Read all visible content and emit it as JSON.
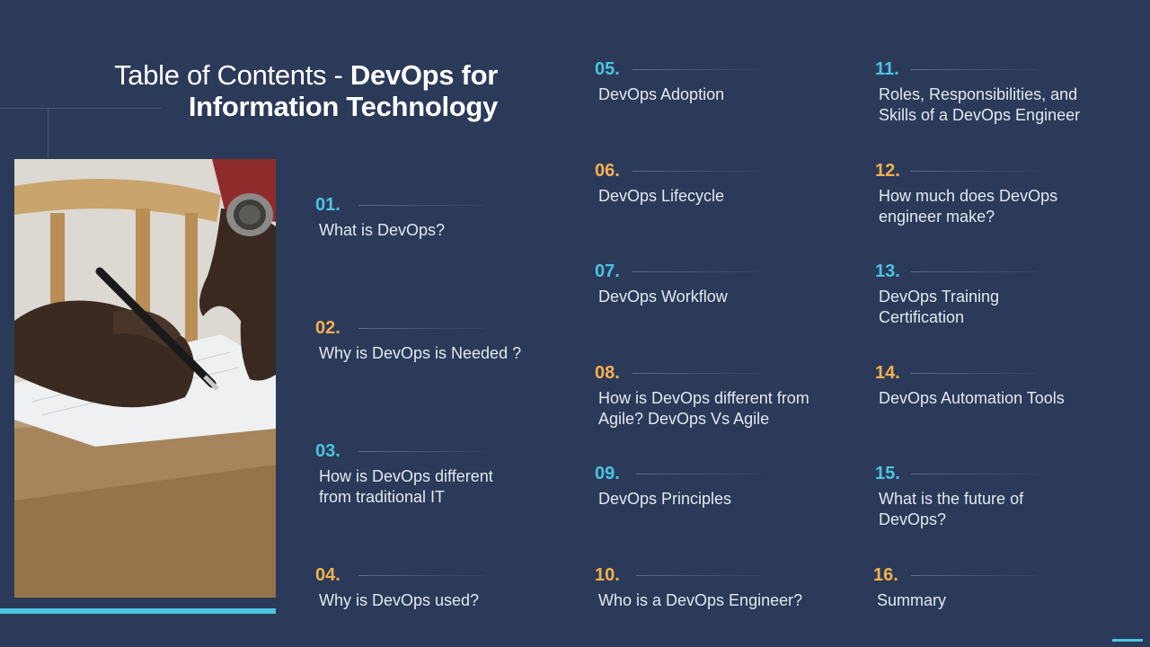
{
  "title": {
    "light": "Table of Contents - ",
    "bold_1": "DevOps for",
    "bold_2": "Information Technology"
  },
  "photo": {
    "icon": "hand-writing-photo"
  },
  "colors": {
    "background": "#2b3a58",
    "accent_blue": "#4cc3e2",
    "accent_orange": "#f4b04f"
  },
  "items": [
    {
      "num": "01.",
      "label": "What is DevOps?"
    },
    {
      "num": "02.",
      "label": "Why is DevOps is Needed ?"
    },
    {
      "num": "03.",
      "label": "How is DevOps different from traditional IT"
    },
    {
      "num": "04.",
      "label": "Why is DevOps used?"
    },
    {
      "num": "05.",
      "label": "DevOps Adoption"
    },
    {
      "num": "06.",
      "label": "DevOps Lifecycle"
    },
    {
      "num": "07.",
      "label": "DevOps Workflow"
    },
    {
      "num": "08.",
      "label": "How is DevOps different from Agile? DevOps Vs Agile"
    },
    {
      "num": "09.",
      "label": "DevOps Principles"
    },
    {
      "num": "10.",
      "label": "Who is a DevOps Engineer?"
    },
    {
      "num": "11.",
      "label": "Roles, Responsibilities, and Skills of a DevOps Engineer"
    },
    {
      "num": "12.",
      "label": "How much does DevOps engineer make?"
    },
    {
      "num": "13.",
      "label": "DevOps Training Certification"
    },
    {
      "num": "14.",
      "label": "DevOps Automation Tools"
    },
    {
      "num": "15.",
      "label": "What is the future of DevOps?"
    },
    {
      "num": "16.",
      "label": "Summary"
    }
  ]
}
